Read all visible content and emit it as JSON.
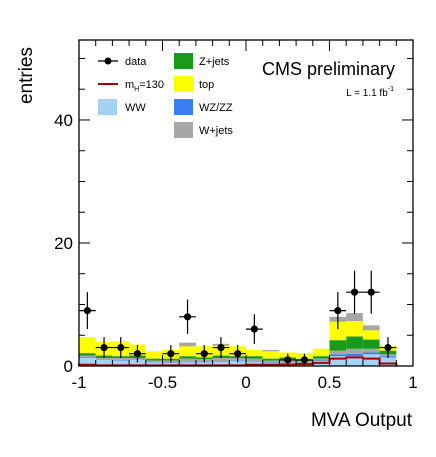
{
  "colors": {
    "WW": "#a3d2f7",
    "WZ/ZZ": "#3a7ff2",
    "W+jets": "#a6a6a6",
    "Z+jets": "#1a9a1a",
    "top": "#ffff00",
    "signal": "#a80000",
    "data": "#000000"
  },
  "chart_data": {
    "type": "bar",
    "title": "CMS preliminary",
    "luminosity": "L = 1.1 fb",
    "luminosity_superscript": "-1",
    "xlabel": "MVA Output",
    "ylabel": "entries",
    "xlim": [
      -1,
      1
    ],
    "ylim": [
      0,
      53
    ],
    "x_tick_labels": [
      "-1",
      "-0.5",
      "0",
      "0.5",
      "1"
    ],
    "y_tick_labels": [
      "0",
      "20",
      "40"
    ],
    "bin_edges": [
      -1.0,
      -0.9,
      -0.8,
      -0.7,
      -0.6,
      -0.5,
      -0.4,
      -0.3,
      -0.2,
      -0.1,
      0.0,
      0.1,
      0.2,
      0.3,
      0.4,
      0.5,
      0.6,
      0.7,
      0.8,
      0.9
    ],
    "legend": {
      "data": "data",
      "signal_prefix": "m",
      "signal_sub": "H",
      "signal_suffix": "=130",
      "WW": "WW",
      "Z+jets": "Z+jets",
      "top": "top",
      "WZ/ZZ": "WZ/ZZ",
      "W+jets": "W+jets"
    },
    "stack_order": [
      "WW",
      "WZ/ZZ",
      "W+jets",
      "Z+jets",
      "top"
    ],
    "series": [
      {
        "name": "WW",
        "values": [
          1.3,
          1.0,
          0.9,
          1.0,
          0.6,
          0.5,
          0.6,
          0.6,
          0.7,
          0.9,
          0.7,
          0.5,
          0.4,
          0.4,
          0.8,
          1.6,
          1.6,
          1.9,
          1.4
        ]
      },
      {
        "name": "WZ/ZZ",
        "values": [
          0.1,
          0.1,
          0.1,
          0.1,
          0.1,
          0.1,
          0.1,
          0.1,
          0.1,
          0.1,
          0.1,
          0.1,
          0.1,
          0.1,
          0.1,
          0.3,
          0.4,
          0.3,
          0.2
        ]
      },
      {
        "name": "W+jets",
        "values": [
          0.3,
          0.2,
          0.3,
          0.2,
          0.2,
          0.3,
          0.5,
          0.4,
          0.5,
          0.3,
          0.4,
          0.3,
          0.6,
          0.3,
          0.3,
          0.6,
          0.8,
          0.6,
          0.3
        ]
      },
      {
        "name": "Z+jets",
        "values": [
          0.4,
          0.4,
          0.3,
          0.4,
          0.3,
          0.3,
          0.4,
          0.3,
          0.4,
          0.3,
          0.4,
          0.3,
          0.3,
          0.3,
          0.4,
          1.7,
          2.0,
          1.5,
          0.6
        ]
      },
      {
        "name": "top",
        "values": [
          2.6,
          2.2,
          2.4,
          1.8,
          1.2,
          1.4,
          1.6,
          1.8,
          1.6,
          1.6,
          1.0,
          1.2,
          0.8,
          1.0,
          1.2,
          3.0,
          2.5,
          1.5,
          0.8
        ]
      },
      {
        "name": "W+jets",
        "part": "upper",
        "values": [
          0.0,
          0.0,
          0.0,
          0.0,
          0.0,
          0.0,
          0.6,
          0.0,
          0.3,
          0.0,
          0.0,
          0.2,
          0.0,
          0.0,
          0.0,
          0.8,
          1.3,
          0.8,
          0.0
        ]
      }
    ],
    "signal_values": [
      0.2,
      0.1,
      0.1,
      0.1,
      0.1,
      0.1,
      0.1,
      0.1,
      0.1,
      0.1,
      0.2,
      0.2,
      0.2,
      0.3,
      0.5,
      1.2,
      1.4,
      1.2,
      0.4
    ],
    "data_points": [
      {
        "x": -0.95,
        "y": 9,
        "err": 3.0
      },
      {
        "x": -0.85,
        "y": 3,
        "err": 1.7
      },
      {
        "x": -0.75,
        "y": 3,
        "err": 1.7
      },
      {
        "x": -0.65,
        "y": 2,
        "err": 1.4
      },
      {
        "x": -0.45,
        "y": 2,
        "err": 1.4
      },
      {
        "x": -0.35,
        "y": 8,
        "err": 2.8
      },
      {
        "x": -0.25,
        "y": 2,
        "err": 1.4
      },
      {
        "x": -0.15,
        "y": 3,
        "err": 1.7
      },
      {
        "x": -0.05,
        "y": 2,
        "err": 1.4
      },
      {
        "x": 0.05,
        "y": 6,
        "err": 2.4
      },
      {
        "x": 0.25,
        "y": 1,
        "err": 1.0
      },
      {
        "x": 0.35,
        "y": 1,
        "err": 1.0
      },
      {
        "x": 0.55,
        "y": 9,
        "err": 3.0
      },
      {
        "x": 0.65,
        "y": 12,
        "err": 3.5
      },
      {
        "x": 0.75,
        "y": 12,
        "err": 3.5
      },
      {
        "x": 0.85,
        "y": 3,
        "err": 1.7
      }
    ]
  }
}
